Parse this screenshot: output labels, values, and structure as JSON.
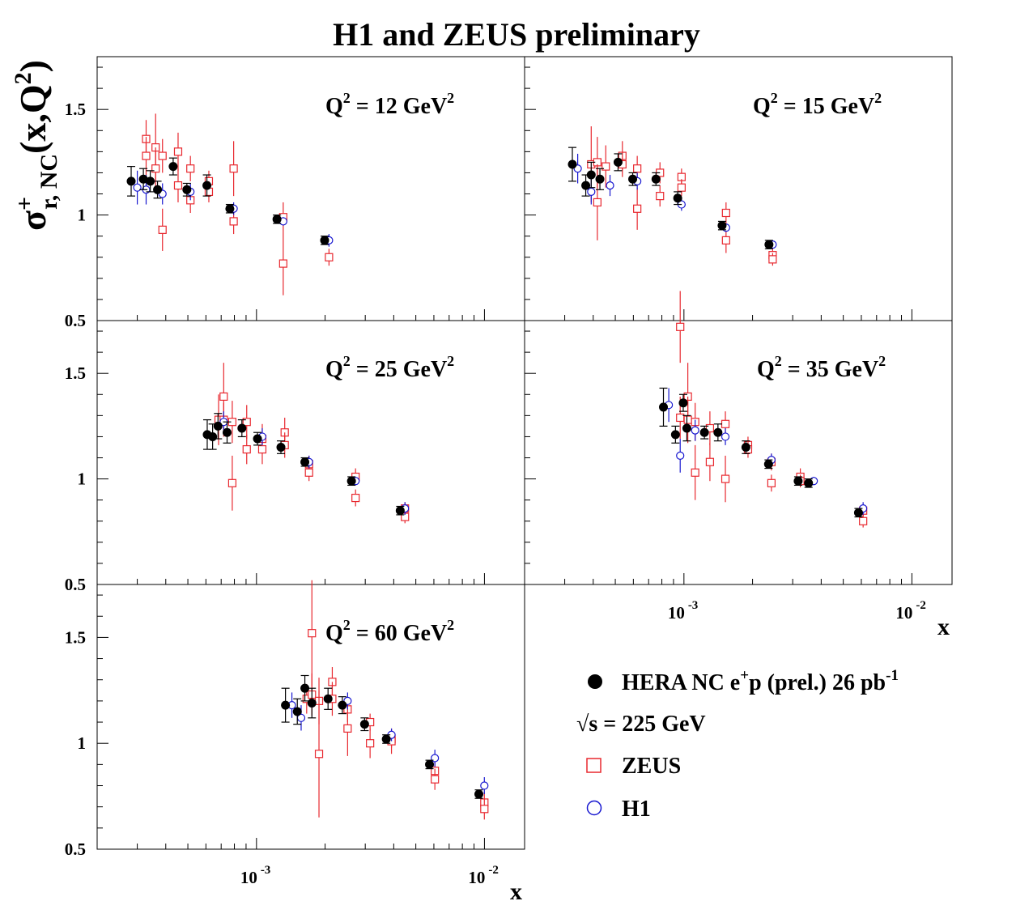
{
  "figure": {
    "title": "H1 and ZEUS preliminary",
    "ylabel": {
      "sigma": "σ",
      "sup": "+",
      "sub": "r, NC",
      "rest": "(x,Q",
      "sup2": "2",
      "close": ")"
    },
    "xlabel": "x",
    "xticks": [
      {
        "base": "10",
        "exp": "-3",
        "value": 0.001
      },
      {
        "base": "10",
        "exp": "-2",
        "value": 0.01
      }
    ],
    "yticks": [
      {
        "label": "0.5",
        "value": 0.5
      },
      {
        "label": "1",
        "value": 1.0
      },
      {
        "label": "1.5",
        "value": 1.5
      }
    ],
    "legend": {
      "hera": {
        "pre": "HERA NC e",
        "sup1": "+",
        "mid": "p (prel.) 26 pb",
        "sup2": "-1"
      },
      "sqrts": {
        "root": "√",
        "text": "s = 225 GeV"
      },
      "zeus": "ZEUS",
      "h1": "H1"
    },
    "colors": {
      "hera": "#000000",
      "zeus": "#e8282f",
      "h1": "#1818d0"
    }
  },
  "chart_data": {
    "type": "scatter",
    "title": "H1 and ZEUS preliminary",
    "xlabel": "x",
    "ylabel": "σ+ r, NC (x,Q2)",
    "xscale": "log",
    "xlim": [
      0.0002,
      0.015
    ],
    "ylim": [
      0.5,
      1.75
    ],
    "panels": [
      {
        "q2": "Q",
        "q2sup": "2",
        "q2rest": " = 12 GeV",
        "q2sup2": "2",
        "hera": [
          [
            0.000282,
            1.16,
            0.07
          ],
          [
            0.000319,
            1.17,
            0.05
          ],
          [
            0.000342,
            1.16,
            0.05
          ],
          [
            0.000368,
            1.12,
            0.04
          ],
          [
            0.000431,
            1.23,
            0.04
          ],
          [
            0.000495,
            1.12,
            0.03
          ],
          [
            0.000606,
            1.14,
            0.05
          ],
          [
            0.000764,
            1.03,
            0.02
          ],
          [
            0.00123,
            0.98,
            0.02
          ],
          [
            0.00199,
            0.88,
            0.02
          ]
        ],
        "zeus": [
          [
            0.000328,
            1.36,
            0.09
          ],
          [
            0.000328,
            1.28,
            0.09
          ],
          [
            0.000361,
            1.32,
            0.16
          ],
          [
            0.000361,
            1.22,
            0.1
          ],
          [
            0.000387,
            1.28,
            0.08
          ],
          [
            0.000387,
            0.93,
            0.1
          ],
          [
            0.000453,
            1.3,
            0.09
          ],
          [
            0.000453,
            1.14,
            0.08
          ],
          [
            0.000513,
            1.22,
            0.06
          ],
          [
            0.000513,
            1.07,
            0.06
          ],
          [
            0.000618,
            1.16,
            0.05
          ],
          [
            0.000618,
            1.11,
            0.05
          ],
          [
            0.000794,
            1.22,
            0.13
          ],
          [
            0.000794,
            0.97,
            0.06
          ],
          [
            0.00131,
            0.99,
            0.07
          ],
          [
            0.00131,
            0.77,
            0.15
          ],
          [
            0.00208,
            0.8,
            0.04
          ]
        ],
        "h1": [
          [
            0.0003,
            1.13,
            0.08
          ],
          [
            0.000328,
            1.12,
            0.07
          ],
          [
            0.000387,
            1.1,
            0.05
          ],
          [
            0.000513,
            1.11,
            0.04
          ],
          [
            0.000794,
            1.03,
            0.03
          ],
          [
            0.00131,
            0.97,
            0.02
          ],
          [
            0.00208,
            0.88,
            0.03
          ]
        ]
      },
      {
        "q2": "Q",
        "q2sup": "2",
        "q2rest": " = 15 GeV",
        "q2sup2": "2",
        "hera": [
          [
            0.000324,
            1.24,
            0.08
          ],
          [
            0.000371,
            1.14,
            0.05
          ],
          [
            0.000392,
            1.19,
            0.06
          ],
          [
            0.000428,
            1.17,
            0.05
          ],
          [
            0.000514,
            1.25,
            0.04
          ],
          [
            0.000596,
            1.17,
            0.03
          ],
          [
            0.000754,
            1.17,
            0.03
          ],
          [
            0.000939,
            1.08,
            0.03
          ],
          [
            0.00147,
            0.95,
            0.02
          ],
          [
            0.00236,
            0.86,
            0.02
          ]
        ],
        "zeus": [
          [
            0.000392,
            1.24,
            0.18
          ],
          [
            0.000417,
            1.25,
            0.12
          ],
          [
            0.000417,
            1.06,
            0.18
          ],
          [
            0.000454,
            1.23,
            0.1
          ],
          [
            0.000537,
            1.28,
            0.07
          ],
          [
            0.000537,
            1.24,
            0.06
          ],
          [
            0.000624,
            1.22,
            0.06
          ],
          [
            0.000624,
            1.03,
            0.1
          ],
          [
            0.000785,
            1.2,
            0.05
          ],
          [
            0.000785,
            1.09,
            0.05
          ],
          [
            0.000976,
            1.18,
            0.04
          ],
          [
            0.000976,
            1.13,
            0.04
          ],
          [
            0.00153,
            1.01,
            0.05
          ],
          [
            0.00153,
            0.88,
            0.06
          ],
          [
            0.00245,
            0.81,
            0.03
          ],
          [
            0.00245,
            0.79,
            0.03
          ]
        ],
        "h1": [
          [
            0.000342,
            1.22,
            0.07
          ],
          [
            0.000392,
            1.11,
            0.06
          ],
          [
            0.000474,
            1.14,
            0.05
          ],
          [
            0.000624,
            1.16,
            0.04
          ],
          [
            0.000976,
            1.05,
            0.03
          ],
          [
            0.00153,
            0.94,
            0.02
          ],
          [
            0.00245,
            0.86,
            0.02
          ]
        ]
      },
      {
        "q2": "Q",
        "q2sup": "2",
        "q2rest": " = 25 GeV",
        "q2sup2": "2",
        "hera": [
          [
            0.000608,
            1.21,
            0.07
          ],
          [
            0.000642,
            1.2,
            0.06
          ],
          [
            0.000678,
            1.25,
            0.06
          ],
          [
            0.000743,
            1.22,
            0.05
          ],
          [
            0.000863,
            1.24,
            0.04
          ],
          [
            0.00101,
            1.19,
            0.03
          ],
          [
            0.00128,
            1.15,
            0.03
          ],
          [
            0.00163,
            1.08,
            0.02
          ],
          [
            0.00261,
            0.99,
            0.02
          ],
          [
            0.00427,
            0.85,
            0.02
          ]
        ],
        "zeus": [
          [
            0.000682,
            1.28,
            0.12
          ],
          [
            0.000718,
            1.39,
            0.16
          ],
          [
            0.000718,
            1.28,
            0.08
          ],
          [
            0.000783,
            1.27,
            0.1
          ],
          [
            0.000783,
            0.98,
            0.13
          ],
          [
            0.000906,
            1.27,
            0.08
          ],
          [
            0.000906,
            1.14,
            0.07
          ],
          [
            0.00106,
            1.19,
            0.07
          ],
          [
            0.00106,
            1.14,
            0.07
          ],
          [
            0.00133,
            1.22,
            0.07
          ],
          [
            0.00133,
            1.16,
            0.06
          ],
          [
            0.0017,
            1.07,
            0.04
          ],
          [
            0.0017,
            1.03,
            0.04
          ],
          [
            0.00272,
            1.01,
            0.04
          ],
          [
            0.00272,
            0.91,
            0.04
          ],
          [
            0.00448,
            0.86,
            0.03
          ],
          [
            0.00448,
            0.82,
            0.03
          ]
        ],
        "h1": [
          [
            0.000718,
            1.27,
            0.05
          ],
          [
            0.00106,
            1.2,
            0.04
          ],
          [
            0.0017,
            1.08,
            0.03
          ],
          [
            0.00272,
            0.99,
            0.02
          ],
          [
            0.00448,
            0.86,
            0.03
          ]
        ]
      },
      {
        "q2": "Q",
        "q2sup": "2",
        "q2rest": " = 35 GeV",
        "q2sup2": "2",
        "hera": [
          [
            0.000813,
            1.34,
            0.09
          ],
          [
            0.000918,
            1.21,
            0.04
          ],
          [
            0.000993,
            1.36,
            0.04
          ],
          [
            0.00103,
            1.24,
            0.06
          ],
          [
            0.00123,
            1.22,
            0.03
          ],
          [
            0.00141,
            1.22,
            0.04
          ],
          [
            0.00187,
            1.15,
            0.03
          ],
          [
            0.00235,
            1.07,
            0.02
          ],
          [
            0.00317,
            0.99,
            0.02
          ],
          [
            0.00352,
            0.98,
            0.02
          ],
          [
            0.00583,
            0.84,
            0.02
          ]
        ],
        "zeus": [
          [
            0.000963,
            1.72,
            0.17
          ],
          [
            0.000963,
            1.29,
            0.1
          ],
          [
            0.00104,
            1.39,
            0.16
          ],
          [
            0.00104,
            1.28,
            0.11
          ],
          [
            0.00112,
            1.27,
            0.09
          ],
          [
            0.00112,
            1.03,
            0.13
          ],
          [
            0.0013,
            1.24,
            0.08
          ],
          [
            0.0013,
            1.08,
            0.09
          ],
          [
            0.00152,
            1.26,
            0.06
          ],
          [
            0.00152,
            1.0,
            0.11
          ],
          [
            0.00191,
            1.16,
            0.04
          ],
          [
            0.00191,
            1.14,
            0.04
          ],
          [
            0.00242,
            1.08,
            0.04
          ],
          [
            0.00242,
            0.98,
            0.04
          ],
          [
            0.00324,
            1.01,
            0.04
          ],
          [
            0.00324,
            0.99,
            0.03
          ],
          [
            0.00611,
            0.85,
            0.03
          ],
          [
            0.00611,
            0.8,
            0.03
          ]
        ],
        "h1": [
          [
            0.000858,
            1.35,
            0.08
          ],
          [
            0.000963,
            1.11,
            0.08
          ],
          [
            0.00112,
            1.23,
            0.05
          ],
          [
            0.00152,
            1.2,
            0.04
          ],
          [
            0.00242,
            1.09,
            0.03
          ],
          [
            0.00371,
            0.99,
            0.02
          ],
          [
            0.00611,
            0.86,
            0.03
          ]
        ]
      },
      {
        "q2": "Q",
        "q2sup": "2",
        "q2rest": " = 60 GeV",
        "q2sup2": "2",
        "hera": [
          [
            0.00134,
            1.18,
            0.08
          ],
          [
            0.00151,
            1.15,
            0.06
          ],
          [
            0.00163,
            1.26,
            0.06
          ],
          [
            0.00175,
            1.19,
            0.07
          ],
          [
            0.00206,
            1.21,
            0.05
          ],
          [
            0.00238,
            1.18,
            0.04
          ],
          [
            0.00298,
            1.09,
            0.03
          ],
          [
            0.00371,
            1.02,
            0.02
          ],
          [
            0.00574,
            0.9,
            0.02
          ],
          [
            0.00945,
            0.76,
            0.02
          ]
        ],
        "zeus": [
          [
            0.00166,
            1.21,
            0.07
          ],
          [
            0.00175,
            1.52,
            0.25
          ],
          [
            0.00175,
            1.23,
            0.1
          ],
          [
            0.00188,
            1.2,
            0.11
          ],
          [
            0.00188,
            0.95,
            0.3
          ],
          [
            0.00215,
            1.29,
            0.07
          ],
          [
            0.00215,
            1.21,
            0.08
          ],
          [
            0.00251,
            1.16,
            0.06
          ],
          [
            0.00251,
            1.07,
            0.13
          ],
          [
            0.00315,
            1.1,
            0.04
          ],
          [
            0.00315,
            1.0,
            0.07
          ],
          [
            0.00391,
            1.02,
            0.04
          ],
          [
            0.00391,
            1.01,
            0.06
          ],
          [
            0.00606,
            0.87,
            0.05
          ],
          [
            0.00606,
            0.83,
            0.05
          ],
          [
            0.00999,
            0.72,
            0.05
          ],
          [
            0.00999,
            0.69,
            0.05
          ]
        ],
        "h1": [
          [
            0.00143,
            1.18,
            0.06
          ],
          [
            0.00157,
            1.12,
            0.06
          ],
          [
            0.00251,
            1.2,
            0.04
          ],
          [
            0.00391,
            1.04,
            0.03
          ],
          [
            0.00606,
            0.93,
            0.04
          ],
          [
            0.00999,
            0.8,
            0.04
          ]
        ]
      }
    ]
  }
}
